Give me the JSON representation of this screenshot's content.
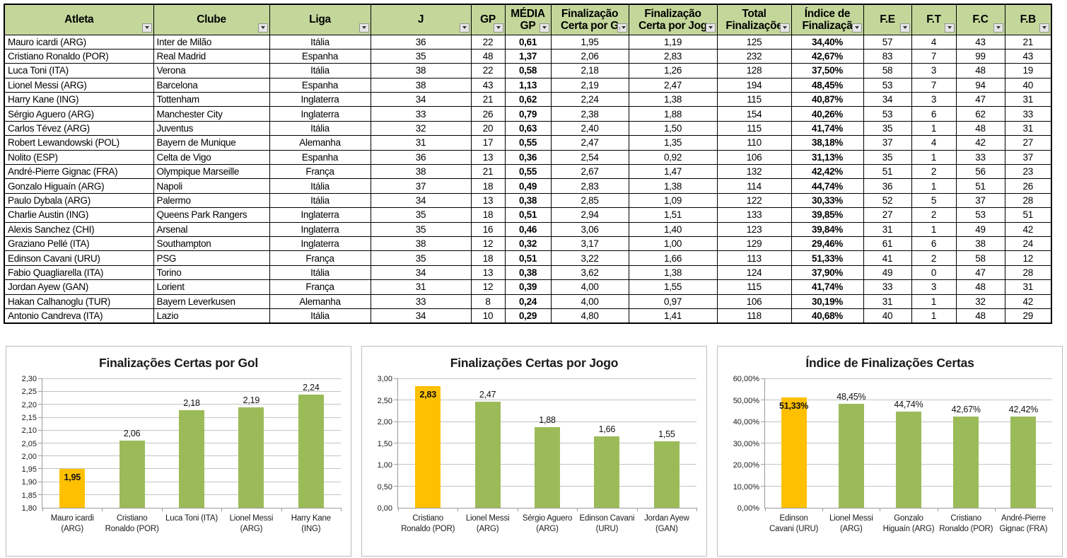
{
  "colors": {
    "header_green": "#C4D79B",
    "fc_column_green": "#C4D79B",
    "bar_green": "#9BBB59",
    "bar_orange": "#FFC000",
    "table_border": "#000000",
    "chart_border": "#BDBDBD",
    "gridline_gray": "#C3C3C3",
    "axis_gray": "#9B9B9B"
  },
  "icons": {
    "filter_dropdown": "triangle-down",
    "sort_ascending": "arrow-up"
  },
  "table": {
    "columns": [
      {
        "id": "atleta",
        "lines": [
          "Atleta"
        ],
        "align": "left"
      },
      {
        "id": "clube",
        "lines": [
          "Clube"
        ],
        "align": "left"
      },
      {
        "id": "liga",
        "lines": [
          "Liga"
        ],
        "align": "center"
      },
      {
        "id": "j",
        "lines": [
          "J"
        ],
        "align": "center"
      },
      {
        "id": "gp",
        "lines": [
          "GP"
        ],
        "align": "center"
      },
      {
        "id": "media-gp",
        "lines": [
          "MÉDIA",
          "GP"
        ],
        "align": "center",
        "bold": true
      },
      {
        "id": "fin-certa-gol",
        "lines": [
          "Finalização",
          "Certa por G"
        ],
        "align": "center",
        "sorted": true
      },
      {
        "id": "fin-certa-jogo",
        "lines": [
          "Finalização",
          "Certa por Jog"
        ],
        "align": "center"
      },
      {
        "id": "total-fin",
        "lines": [
          "Total",
          "Finalizaçõe"
        ],
        "align": "center"
      },
      {
        "id": "indice-fin",
        "lines": [
          "Índice de",
          "Finalizaçã"
        ],
        "align": "center",
        "bold": true
      },
      {
        "id": "fe",
        "lines": [
          "F.E"
        ],
        "align": "center"
      },
      {
        "id": "ft",
        "lines": [
          "F.T"
        ],
        "align": "center"
      },
      {
        "id": "fc",
        "lines": [
          "F.C"
        ],
        "align": "center",
        "green": true
      },
      {
        "id": "fb",
        "lines": [
          "F.B"
        ],
        "align": "center"
      }
    ],
    "rows": [
      [
        "Mauro icardi (ARG)",
        "Inter de Milão",
        "Itália",
        "36",
        "22",
        "0,61",
        "1,95",
        "1,19",
        "125",
        "34,40%",
        "57",
        "4",
        "43",
        "21"
      ],
      [
        "Cristiano Ronaldo (POR)",
        "Real Madrid",
        "Espanha",
        "35",
        "48",
        "1,37",
        "2,06",
        "2,83",
        "232",
        "42,67%",
        "83",
        "7",
        "99",
        "43"
      ],
      [
        "Luca Toni (ITA)",
        "Verona",
        "Itália",
        "38",
        "22",
        "0,58",
        "2,18",
        "1,26",
        "128",
        "37,50%",
        "58",
        "3",
        "48",
        "19"
      ],
      [
        "Lionel Messi (ARG)",
        "Barcelona",
        "Espanha",
        "38",
        "43",
        "1,13",
        "2,19",
        "2,47",
        "194",
        "48,45%",
        "53",
        "7",
        "94",
        "40"
      ],
      [
        "Harry Kane (ING)",
        "Tottenham",
        "Inglaterra",
        "34",
        "21",
        "0,62",
        "2,24",
        "1,38",
        "115",
        "40,87%",
        "34",
        "3",
        "47",
        "31"
      ],
      [
        "Sérgio Aguero (ARG)",
        "Manchester City",
        "Inglaterra",
        "33",
        "26",
        "0,79",
        "2,38",
        "1,88",
        "154",
        "40,26%",
        "53",
        "6",
        "62",
        "33"
      ],
      [
        "Carlos Tévez (ARG)",
        "Juventus",
        "Itália",
        "32",
        "20",
        "0,63",
        "2,40",
        "1,50",
        "115",
        "41,74%",
        "35",
        "1",
        "48",
        "31"
      ],
      [
        "Robert Lewandowski (POL)",
        "Bayern de Munique",
        "Alemanha",
        "31",
        "17",
        "0,55",
        "2,47",
        "1,35",
        "110",
        "38,18%",
        "37",
        "4",
        "42",
        "27"
      ],
      [
        "Nolito (ESP)",
        "Celta de Vigo",
        "Espanha",
        "36",
        "13",
        "0,36",
        "2,54",
        "0,92",
        "106",
        "31,13%",
        "35",
        "1",
        "33",
        "37"
      ],
      [
        "André-Pierre Gignac (FRA)",
        "Olympique Marseille",
        "França",
        "38",
        "21",
        "0,55",
        "2,67",
        "1,47",
        "132",
        "42,42%",
        "51",
        "2",
        "56",
        "23"
      ],
      [
        "Gonzalo Higuaín (ARG)",
        "Napoli",
        "Itália",
        "37",
        "18",
        "0,49",
        "2,83",
        "1,38",
        "114",
        "44,74%",
        "36",
        "1",
        "51",
        "26"
      ],
      [
        "Paulo Dybala (ARG)",
        "Palermo",
        "Itália",
        "34",
        "13",
        "0,38",
        "2,85",
        "1,09",
        "122",
        "30,33%",
        "52",
        "5",
        "37",
        "28"
      ],
      [
        "Charlie Austin (ING)",
        "Queens Park Rangers",
        "Inglaterra",
        "35",
        "18",
        "0,51",
        "2,94",
        "1,51",
        "133",
        "39,85%",
        "27",
        "2",
        "53",
        "51"
      ],
      [
        "Alexis Sanchez (CHI)",
        "Arsenal",
        "Inglaterra",
        "35",
        "16",
        "0,46",
        "3,06",
        "1,40",
        "123",
        "39,84%",
        "31",
        "1",
        "49",
        "42"
      ],
      [
        "Graziano Pellé (ITA)",
        "Southampton",
        "Inglaterra",
        "38",
        "12",
        "0,32",
        "3,17",
        "1,00",
        "129",
        "29,46%",
        "61",
        "6",
        "38",
        "24"
      ],
      [
        "Edinson Cavani (URU)",
        "PSG",
        "França",
        "35",
        "18",
        "0,51",
        "3,22",
        "1,66",
        "113",
        "51,33%",
        "41",
        "2",
        "58",
        "12"
      ],
      [
        "Fabio Quagliarella (ITA)",
        "Torino",
        "Itália",
        "34",
        "13",
        "0,38",
        "3,62",
        "1,38",
        "124",
        "37,90%",
        "49",
        "0",
        "47",
        "28"
      ],
      [
        "Jordan Ayew (GAN)",
        "Lorient",
        "França",
        "31",
        "12",
        "0,39",
        "4,00",
        "1,55",
        "115",
        "41,74%",
        "33",
        "3",
        "48",
        "31"
      ],
      [
        "Hakan Calhanoglu (TUR)",
        "Bayern Leverkusen",
        "Alemanha",
        "33",
        "8",
        "0,24",
        "4,00",
        "0,97",
        "106",
        "30,19%",
        "31",
        "1",
        "32",
        "42"
      ],
      [
        "Antonio Candreva (ITA)",
        "Lazio",
        "Itália",
        "34",
        "10",
        "0,29",
        "4,80",
        "1,41",
        "118",
        "40,68%",
        "40",
        "1",
        "48",
        "29"
      ]
    ]
  },
  "chart_data": [
    {
      "type": "bar",
      "title": "Finalizações Certas por Gol",
      "categories": [
        [
          "Mauro icardi",
          "(ARG)"
        ],
        [
          "Cristiano",
          "Ronaldo (POR)"
        ],
        [
          "Luca Toni (ITA)"
        ],
        [
          "Lionel Messi",
          "(ARG)"
        ],
        [
          "Harry Kane",
          "(ING)"
        ]
      ],
      "values": [
        1.95,
        2.06,
        2.18,
        2.19,
        2.24
      ],
      "labels": [
        "1,95",
        "2,06",
        "2,18",
        "2,19",
        "2,24"
      ],
      "ymin": 1.8,
      "ymax": 2.3,
      "ystep": 0.05,
      "ytick_labels": [
        "1,80",
        "1,85",
        "1,90",
        "1,95",
        "2,00",
        "2,05",
        "2,10",
        "2,15",
        "2,20",
        "2,25",
        "2,30"
      ],
      "highlight_index": 0,
      "bar_color": "#9BBB59",
      "highlight_color": "#FFC000",
      "grid": true,
      "legend": "none",
      "xlabel": "",
      "ylabel": ""
    },
    {
      "type": "bar",
      "title": "Finalizações Certas por Jogo",
      "categories": [
        [
          "Cristiano",
          "Ronaldo (POR)"
        ],
        [
          "Lionel Messi",
          "(ARG)"
        ],
        [
          "Sérgio Aguero",
          "(ARG)"
        ],
        [
          "Edinson Cavani",
          "(URU)"
        ],
        [
          "Jordan Ayew",
          "(GAN)"
        ]
      ],
      "values": [
        2.83,
        2.47,
        1.88,
        1.66,
        1.55
      ],
      "labels": [
        "2,83",
        "2,47",
        "1,88",
        "1,66",
        "1,55"
      ],
      "ymin": 0,
      "ymax": 3.0,
      "ystep": 0.5,
      "ytick_labels": [
        "0,00",
        "0,50",
        "1,00",
        "1,50",
        "2,00",
        "2,50",
        "3,00"
      ],
      "highlight_index": 0,
      "bar_color": "#9BBB59",
      "highlight_color": "#FFC000",
      "grid": true,
      "legend": "none",
      "xlabel": "",
      "ylabel": ""
    },
    {
      "type": "bar",
      "title": "Índice de Finalizações Certas",
      "categories": [
        [
          "Edinson",
          "Cavani (URU)"
        ],
        [
          "Lionel Messi",
          "(ARG)"
        ],
        [
          "Gonzalo",
          "Higuaín (ARG)"
        ],
        [
          "Cristiano",
          "Ronaldo (POR)"
        ],
        [
          "André-Pierre",
          "Gignac (FRA)"
        ]
      ],
      "values": [
        51.33,
        48.45,
        44.74,
        42.67,
        42.42
      ],
      "labels": [
        "51,33%",
        "48,45%",
        "44,74%",
        "42,67%",
        "42,42%"
      ],
      "ymin": 0,
      "ymax": 60,
      "ystep": 10,
      "ytick_labels": [
        "0,00%",
        "10,00%",
        "20,00%",
        "30,00%",
        "40,00%",
        "50,00%",
        "60,00%"
      ],
      "highlight_index": 0,
      "bar_color": "#9BBB59",
      "highlight_color": "#FFC000",
      "grid": true,
      "legend": "none",
      "xlabel": "",
      "ylabel": ""
    }
  ]
}
